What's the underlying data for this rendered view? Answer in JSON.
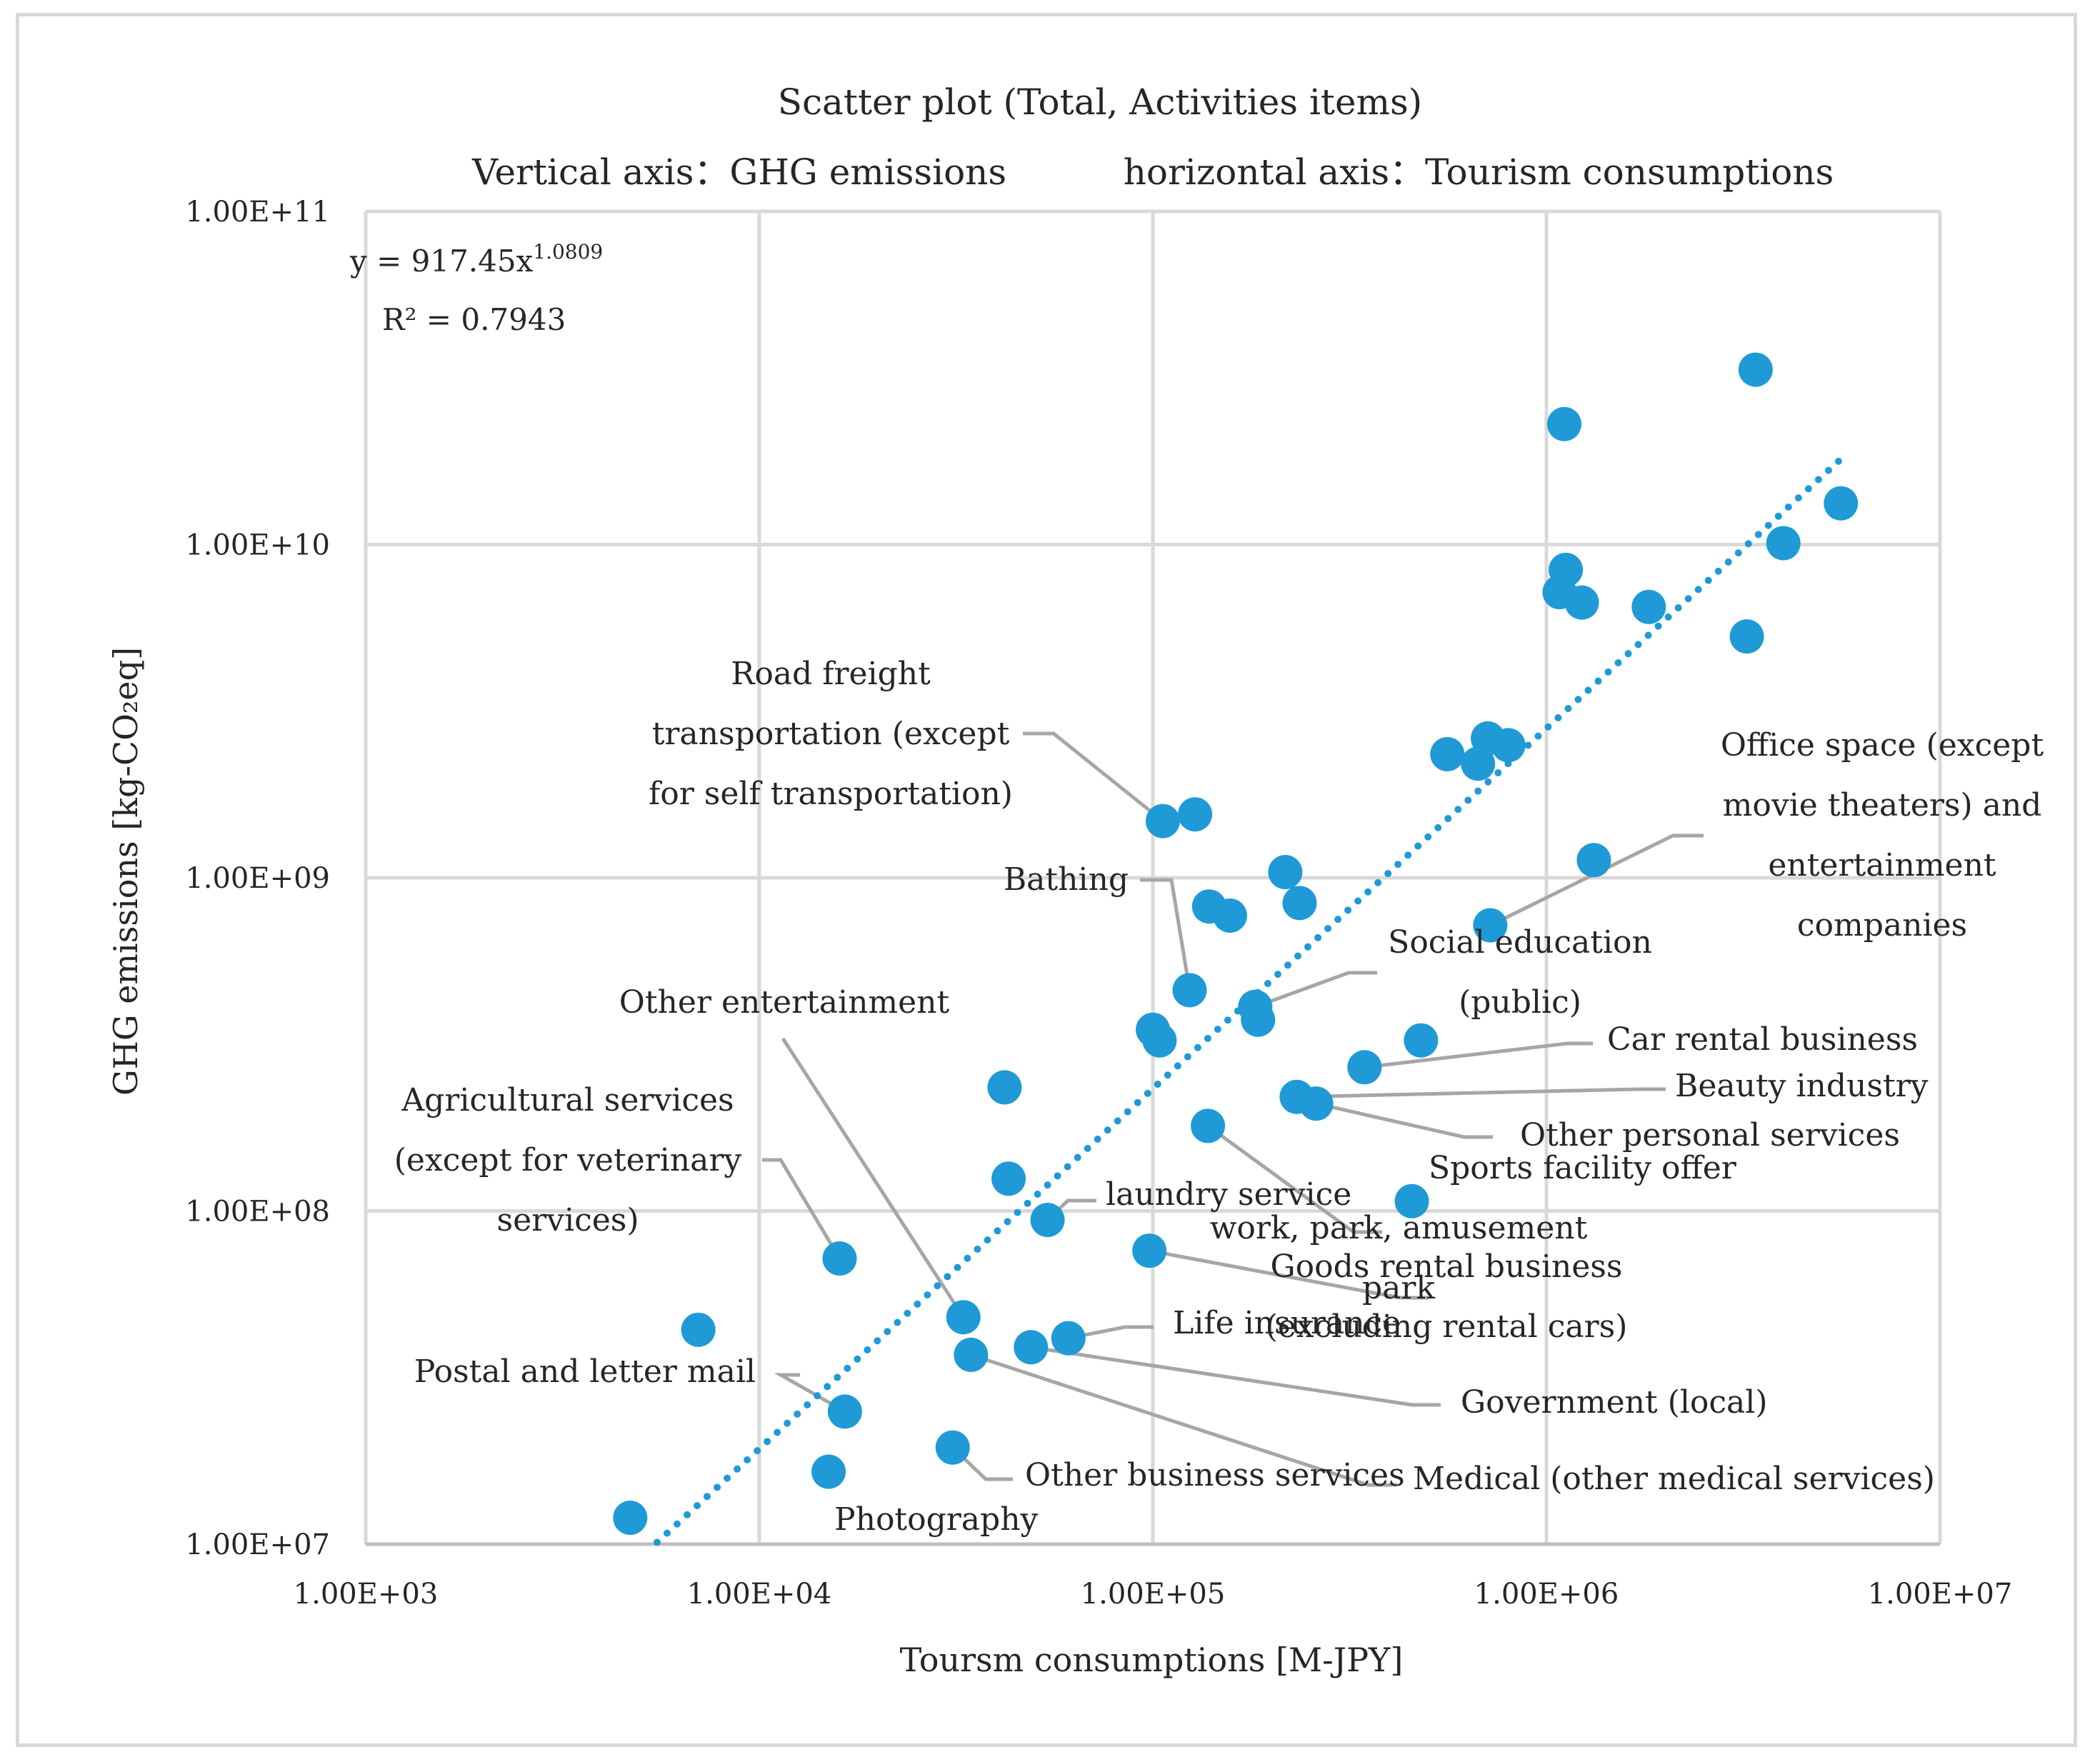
{
  "chart_data": {
    "type": "scatter",
    "title": [
      "Scatter plot (Total, Activities items)",
      "Vertical axis：GHG emissions",
      "horizontal axis：Tourism consumptions"
    ],
    "xlabel": "Toursm consumptions [M-JPY]",
    "ylabel": "GHG emissions [kg-CO₂eq]",
    "xscale": "log",
    "yscale": "log",
    "xlim": [
      1000,
      10000000
    ],
    "ylim": [
      10000000,
      100000000000
    ],
    "x_ticks": [
      "1.00E+03",
      "1.00E+04",
      "1.00E+05",
      "1.00E+06",
      "1.00E+07"
    ],
    "y_ticks": [
      "1.00E+07",
      "1.00E+08",
      "1.00E+09",
      "1.00E+10",
      "1.00E+11"
    ],
    "grid": true,
    "marker_color": "#1f9ad6",
    "trendline": {
      "type": "power",
      "a": 917.45,
      "b": 1.0809,
      "x_range": [
        5500,
        5600000
      ],
      "equation_prefix": "y = 917.45x",
      "equation_exponent": "1.0809",
      "r2_text": "R² = 0.7943",
      "color": "#1f9ad6"
    },
    "points": [
      {
        "x": 4700,
        "y": 12000000
      },
      {
        "x": 7000,
        "y": 44000000
      },
      {
        "x": 15000,
        "y": 16500000
      },
      {
        "x": 16000,
        "y": 72000000
      },
      {
        "x": 16500,
        "y": 25000000
      },
      {
        "x": 31000,
        "y": 19500000
      },
      {
        "x": 33000,
        "y": 48000000
      },
      {
        "x": 34500,
        "y": 37000000
      },
      {
        "x": 42000,
        "y": 235000000
      },
      {
        "x": 43000,
        "y": 125000000
      },
      {
        "x": 49000,
        "y": 39000000
      },
      {
        "x": 54000,
        "y": 94000000
      },
      {
        "x": 61000,
        "y": 41500000
      },
      {
        "x": 98000,
        "y": 76000000
      },
      {
        "x": 100000,
        "y": 350000000
      },
      {
        "x": 104000,
        "y": 325000000
      },
      {
        "x": 106000,
        "y": 1480000000
      },
      {
        "x": 124000,
        "y": 460000000
      },
      {
        "x": 128000,
        "y": 1550000000
      },
      {
        "x": 138000,
        "y": 180000000
      },
      {
        "x": 139000,
        "y": 820000000
      },
      {
        "x": 157000,
        "y": 770000000
      },
      {
        "x": 182000,
        "y": 410000000
      },
      {
        "x": 185000,
        "y": 375000000
      },
      {
        "x": 217000,
        "y": 1040000000
      },
      {
        "x": 232000,
        "y": 220000000
      },
      {
        "x": 236000,
        "y": 840000000
      },
      {
        "x": 260000,
        "y": 210000000
      },
      {
        "x": 345000,
        "y": 270000000
      },
      {
        "x": 455000,
        "y": 107000000
      },
      {
        "x": 480000,
        "y": 325000000
      },
      {
        "x": 560000,
        "y": 2350000000
      },
      {
        "x": 670000,
        "y": 2200000000
      },
      {
        "x": 710000,
        "y": 2620000000
      },
      {
        "x": 720000,
        "y": 720000000
      },
      {
        "x": 800000,
        "y": 2500000000
      },
      {
        "x": 1080000,
        "y": 7200000000
      },
      {
        "x": 1110000,
        "y": 23000000000
      },
      {
        "x": 1120000,
        "y": 8400000000
      },
      {
        "x": 1230000,
        "y": 6700000000
      },
      {
        "x": 1320000,
        "y": 1130000000
      },
      {
        "x": 1820000,
        "y": 6500000000
      },
      {
        "x": 3230000,
        "y": 5300000000
      },
      {
        "x": 3400000,
        "y": 33500000000
      },
      {
        "x": 4000000,
        "y": 10100000000
      },
      {
        "x": 5600000,
        "y": 13300000000
      }
    ],
    "annotations": [
      {
        "lines": [
          "Road freight",
          "transportation (except",
          "for self transportation)"
        ],
        "point": {
          "x": 106000,
          "y": 1480000000
        },
        "anchor": "middle"
      },
      {
        "lines": [
          "Bathing"
        ],
        "point": {
          "x": 124000,
          "y": 460000000
        },
        "anchor": "end"
      },
      {
        "lines": [
          "Office space (except",
          "movie theaters) and",
          "entertainment",
          "companies"
        ],
        "point": {
          "x": 720000,
          "y": 720000000
        },
        "anchor": "middle"
      },
      {
        "lines": [
          "Social education",
          "(public)"
        ],
        "point": {
          "x": 182000,
          "y": 410000000
        },
        "anchor": "middle"
      },
      {
        "lines": [
          "Other entertainment"
        ],
        "point": {
          "x": 33000,
          "y": 48000000
        },
        "anchor": "middle"
      },
      {
        "lines": [
          "Car rental business"
        ],
        "point": {
          "x": 345000,
          "y": 270000000
        },
        "anchor": "start"
      },
      {
        "lines": [
          "Beauty industry"
        ],
        "point": {
          "x": 232000,
          "y": 220000000
        },
        "anchor": "start"
      },
      {
        "lines": [
          "Other personal services"
        ],
        "point": {
          "x": 260000,
          "y": 210000000
        },
        "anchor": "start"
      },
      {
        "lines": [
          "Agricultural services",
          "(except for veterinary",
          "services)"
        ],
        "point": {
          "x": 16000,
          "y": 72000000
        },
        "anchor": "middle"
      },
      {
        "lines": [
          "Sports facility offer"
        ],
        "point": {
          "x": 455000,
          "y": 107000000
        },
        "anchor": "start"
      },
      {
        "lines": [
          "laundry service"
        ],
        "point": {
          "x": 54000,
          "y": 94000000
        },
        "anchor": "start"
      },
      {
        "lines": [
          "work, park, amusement",
          "park"
        ],
        "point": {
          "x": 138000,
          "y": 180000000
        },
        "anchor": "middle"
      },
      {
        "lines": [
          "Goods rental business",
          "(excluding rental cars)"
        ],
        "point": {
          "x": 98000,
          "y": 76000000
        },
        "anchor": "middle"
      },
      {
        "lines": [
          "Life insurance"
        ],
        "point": {
          "x": 61000,
          "y": 41500000
        },
        "anchor": "start"
      },
      {
        "lines": [
          "Postal and letter mail"
        ],
        "point": {
          "x": 16500,
          "y": 25000000
        },
        "anchor": "end"
      },
      {
        "lines": [
          "Government (local)"
        ],
        "point": {
          "x": 49000,
          "y": 39000000
        },
        "anchor": "start"
      },
      {
        "lines": [
          "Other business services"
        ],
        "point": {
          "x": 31000,
          "y": 19500000
        },
        "anchor": "start"
      },
      {
        "lines": [
          "Medical (other medical services)"
        ],
        "point": {
          "x": 34500,
          "y": 37000000
        },
        "anchor": "start"
      },
      {
        "lines": [
          "Photography"
        ],
        "point": {
          "x": 15000,
          "y": 16500000
        },
        "anchor": "start"
      }
    ]
  }
}
